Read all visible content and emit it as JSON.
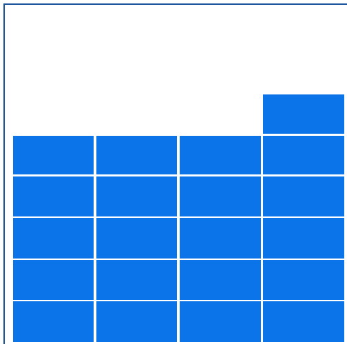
{
  "game": {
    "columns": 4,
    "rows": 6,
    "column_heights": [
      5,
      5,
      5,
      6
    ],
    "block_color": "#0a74e8",
    "frame_color": "#1a4f9a",
    "background_color": "#ffffff"
  }
}
